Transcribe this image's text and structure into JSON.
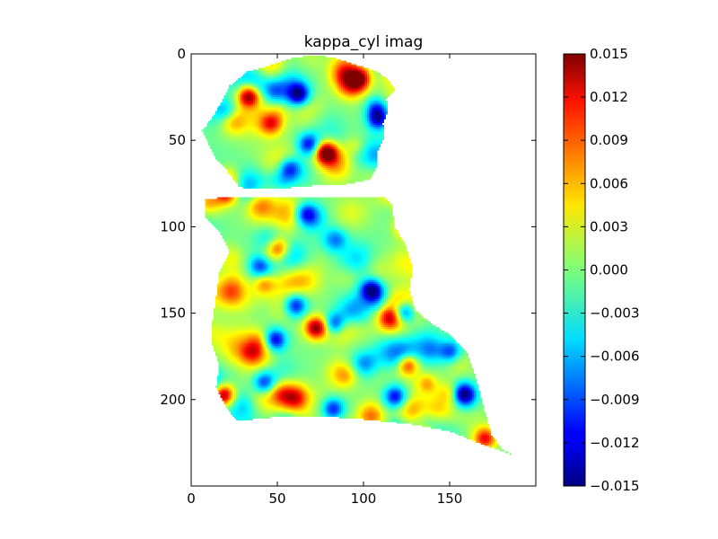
{
  "chart_data": {
    "type": "heatmap",
    "title": "kappa_cyl imag",
    "xlabel": "",
    "ylabel": "",
    "xlim": [
      0,
      200
    ],
    "ylim": [
      250,
      0
    ],
    "x_ticks": [
      "0",
      "50",
      "100",
      "150"
    ],
    "x_tick_values": [
      0,
      50,
      100,
      150
    ],
    "y_ticks": [
      "0",
      "50",
      "100",
      "150",
      "200"
    ],
    "y_tick_values": [
      0,
      50,
      100,
      150,
      200
    ],
    "colormap": "jet",
    "colorbar": {
      "min": -0.015,
      "max": 0.015,
      "tick_values": [
        0.015,
        0.012,
        0.009,
        0.006,
        0.003,
        0.0,
        -0.003,
        -0.006,
        -0.009,
        -0.012,
        -0.015
      ],
      "tick_labels": [
        "0.015",
        "0.012",
        "0.009",
        "0.006",
        "0.003",
        "0.000",
        "−0.003",
        "−0.006",
        "−0.009",
        "−0.012",
        "−0.015"
      ]
    },
    "extreme_spots": [
      {
        "x": 33,
        "y": 24,
        "value": 0.014
      },
      {
        "x": 97,
        "y": 14,
        "value": 0.011
      },
      {
        "x": 78,
        "y": 57,
        "value": 0.012
      },
      {
        "x": 72,
        "y": 158,
        "value": 0.013
      },
      {
        "x": 18,
        "y": 197,
        "value": 0.015
      },
      {
        "x": 125,
        "y": 179,
        "value": 0.012
      },
      {
        "x": 20,
        "y": 80,
        "value": 0.01
      },
      {
        "x": 170,
        "y": 222,
        "value": 0.01
      },
      {
        "x": 115,
        "y": 152,
        "value": 0.009
      },
      {
        "x": 50,
        "y": 112,
        "value": 0.009
      },
      {
        "x": 46,
        "y": 40,
        "value": 0.008
      },
      {
        "x": 135,
        "y": 220,
        "value": 0.008
      },
      {
        "x": 62,
        "y": 23,
        "value": -0.012
      },
      {
        "x": 108,
        "y": 37,
        "value": -0.011
      },
      {
        "x": 68,
        "y": 52,
        "value": -0.01
      },
      {
        "x": 42,
        "y": 190,
        "value": -0.01
      },
      {
        "x": 48,
        "y": 165,
        "value": -0.011
      },
      {
        "x": 104,
        "y": 136,
        "value": -0.012
      },
      {
        "x": 123,
        "y": 149,
        "value": -0.012
      },
      {
        "x": 158,
        "y": 196,
        "value": -0.012
      },
      {
        "x": 60,
        "y": 145,
        "value": -0.01
      },
      {
        "x": 83,
        "y": 156,
        "value": -0.01
      },
      {
        "x": 118,
        "y": 198,
        "value": -0.011
      },
      {
        "x": 66,
        "y": 92,
        "value": -0.009
      },
      {
        "x": 40,
        "y": 122,
        "value": -0.008
      },
      {
        "x": 82,
        "y": 205,
        "value": -0.009
      },
      {
        "x": 150,
        "y": 172,
        "value": -0.008
      }
    ]
  }
}
